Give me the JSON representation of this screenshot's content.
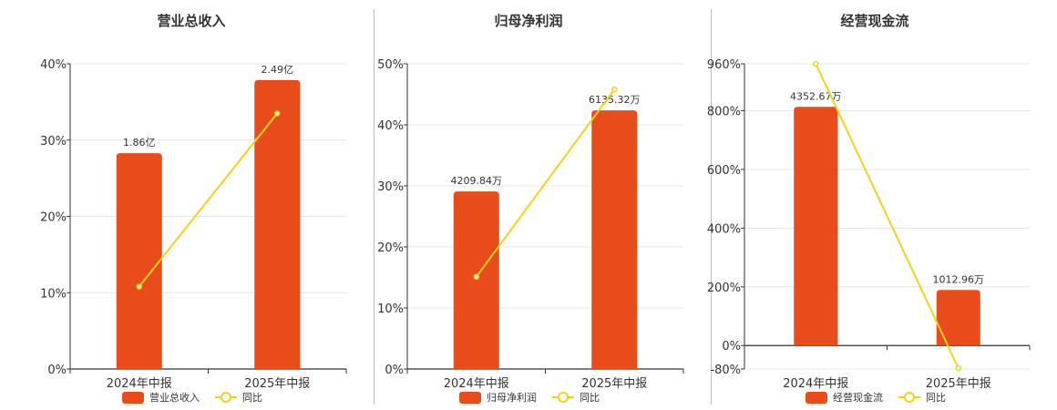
{
  "colors": {
    "bar": "#e84c1a",
    "line": "#f2d21b",
    "grid": "#e6e6e6",
    "axis": "#333333"
  },
  "chart_data": [
    {
      "type": "bar",
      "title": "营业总收入",
      "categories": [
        "2024年中报",
        "2025年中报"
      ],
      "bar_series": {
        "name": "营业总收入",
        "values": [
          1.86,
          2.49
        ],
        "labels": [
          "1.86亿",
          "2.49亿"
        ],
        "axis_max": 2.63
      },
      "line_series": {
        "name": "同比",
        "values": [
          10.8,
          33.5
        ]
      },
      "y_ticks": [
        "0%",
        "10%",
        "20%",
        "30%",
        "40%"
      ],
      "ylim": [
        0,
        40
      ]
    },
    {
      "type": "bar",
      "title": "归母净利润",
      "categories": [
        "2024年中报",
        "2025年中报"
      ],
      "bar_series": {
        "name": "归母净利润",
        "values": [
          4209.84,
          6135.32
        ],
        "labels": [
          "4209.84万",
          "6135.32万"
        ],
        "axis_max": 7239
      },
      "line_series": {
        "name": "同比",
        "values": [
          15.1,
          45.8
        ]
      },
      "y_ticks": [
        "0%",
        "10%",
        "20%",
        "30%",
        "40%",
        "50%"
      ],
      "ylim": [
        0,
        50
      ]
    },
    {
      "type": "bar",
      "title": "经营现金流",
      "categories": [
        "2024年中报",
        "2025年中报"
      ],
      "bar_series": {
        "name": "经营现金流",
        "values": [
          4352.67,
          1012.96
        ],
        "labels": [
          "4352.67万",
          "1012.96万"
        ],
        "axis_max": 5138
      },
      "line_series": {
        "name": "同比",
        "values": [
          960,
          -77
        ]
      },
      "y_ticks": [
        "-80%",
        "0%",
        "200%",
        "400%",
        "600%",
        "800%",
        "960%"
      ],
      "y_tick_values": [
        -80,
        0,
        200,
        400,
        600,
        800,
        960
      ],
      "ylim": [
        -80,
        960
      ]
    }
  ]
}
